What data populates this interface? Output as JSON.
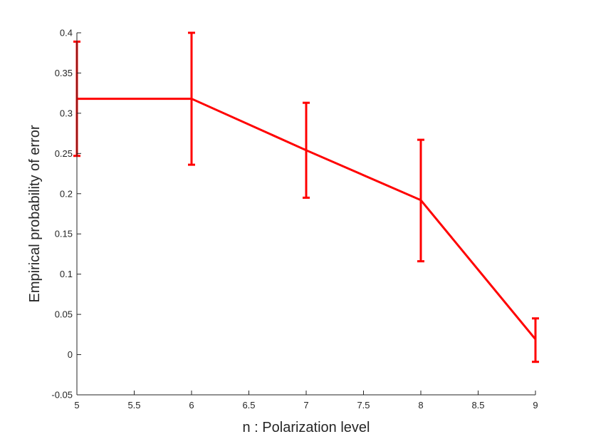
{
  "chart_data": {
    "type": "line",
    "title": "",
    "xlabel": "n : Polarization level",
    "ylabel": "Empirical probability of error",
    "xlim": [
      5,
      9
    ],
    "ylim": [
      -0.05,
      0.4
    ],
    "xticks": [
      5,
      5.5,
      6,
      6.5,
      7,
      7.5,
      8,
      8.5,
      9
    ],
    "xtick_labels": [
      "5",
      "5.5",
      "6",
      "6.5",
      "7",
      "7.5",
      "8",
      "8.5",
      "9"
    ],
    "yticks": [
      -0.05,
      0,
      0.05,
      0.1,
      0.15,
      0.2,
      0.25,
      0.3,
      0.35,
      0.4
    ],
    "ytick_labels": [
      "-0.05",
      "0",
      "0.05",
      "0.1",
      "0.15",
      "0.2",
      "0.25",
      "0.3",
      "0.35",
      "0.4"
    ],
    "grid": false,
    "legend": null,
    "series": [
      {
        "name": "Empirical probability of error",
        "color": "#ff0000",
        "x": [
          5,
          6,
          7,
          8,
          9
        ],
        "values": [
          0.318,
          0.318,
          0.254,
          0.192,
          0.019
        ],
        "error_lower": [
          0.247,
          0.236,
          0.195,
          0.116,
          -0.009
        ],
        "error_upper": [
          0.389,
          0.4,
          0.313,
          0.267,
          0.045
        ]
      }
    ]
  },
  "colors": {
    "axis": "#262626",
    "series": "#ff0000",
    "background": "#ffffff"
  }
}
